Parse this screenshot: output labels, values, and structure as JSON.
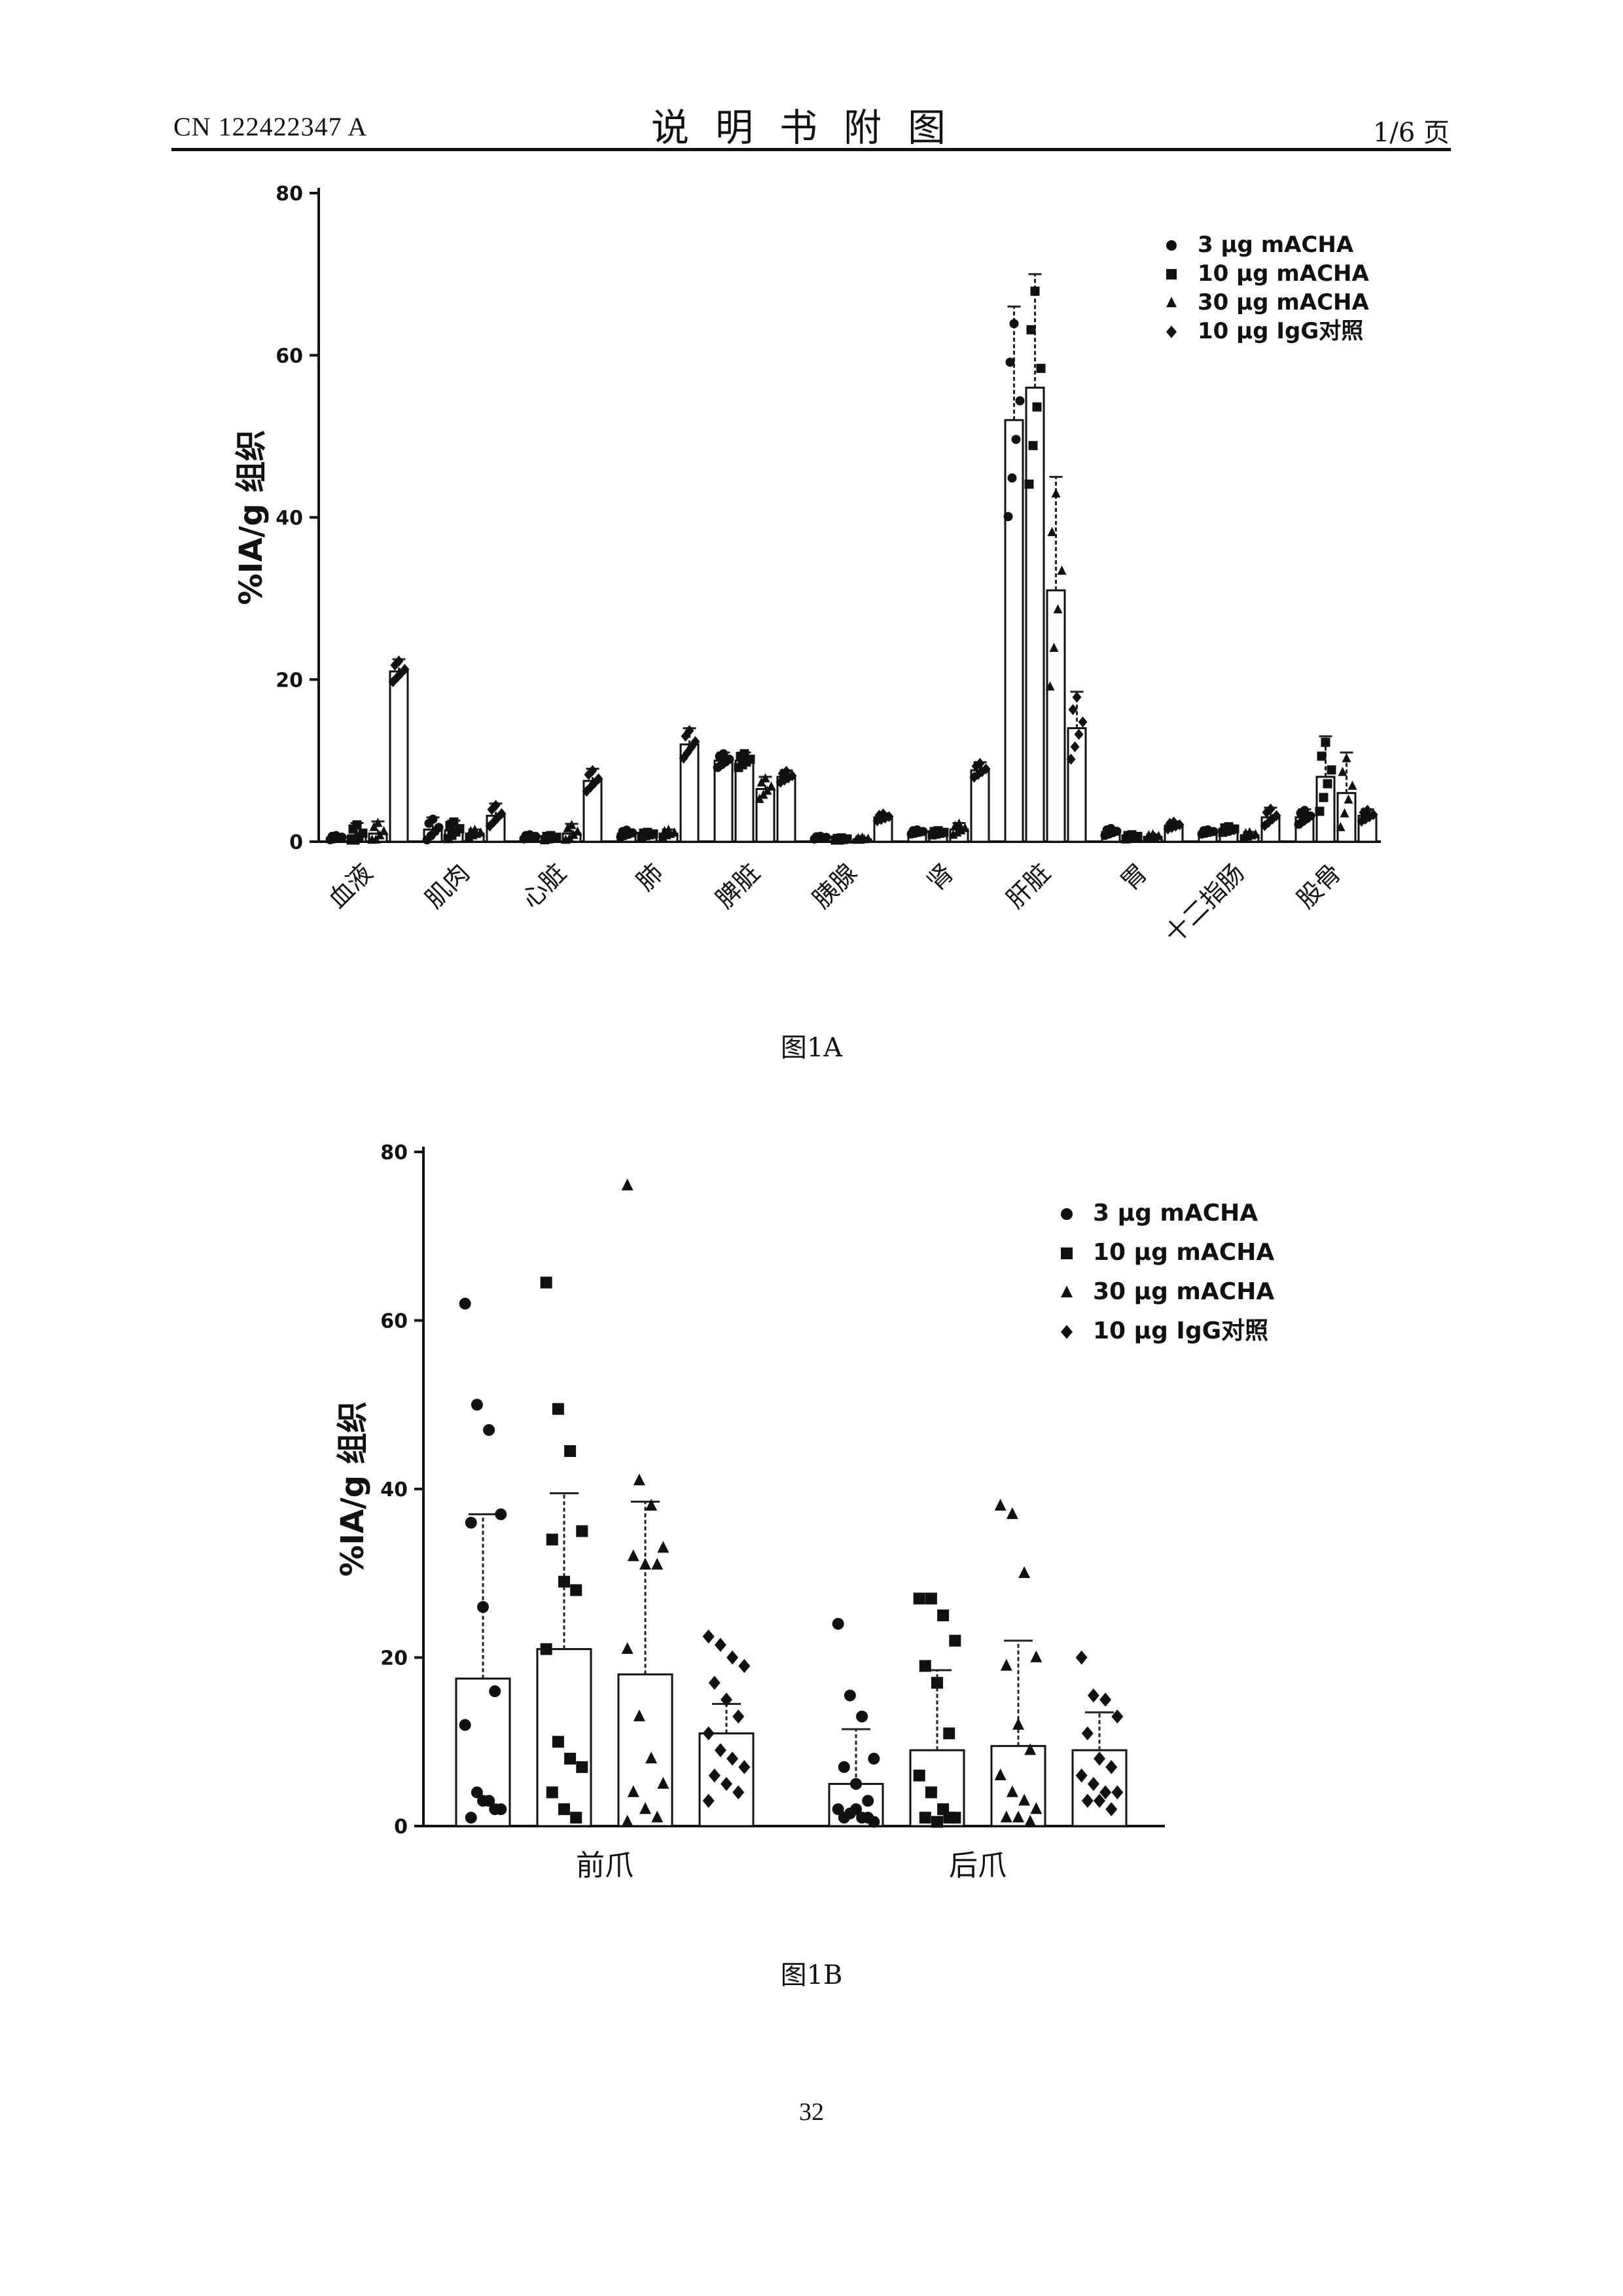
{
  "header": {
    "doc_number": "CN 122422347 A",
    "title": "说明书附图",
    "page_of": "1/6 页"
  },
  "figure_a_caption": "图1A",
  "figure_b_caption": "图1B",
  "page_number": "32",
  "colors": {
    "ink": "#111111",
    "bar_fill": "#ffffff",
    "error_bar": "#222222"
  },
  "chart_data": [
    {
      "id": "fig1a",
      "type": "bar",
      "ylabel": "%IA/g 组织",
      "ylim": [
        0,
        80
      ],
      "yticks": [
        "0",
        "20",
        "40",
        "60",
        "80"
      ],
      "categories": [
        "血液",
        "肌肉",
        "心脏",
        "肺",
        "脾脏",
        "胰腺",
        "肾",
        "肝脏",
        "胃",
        "十二指肠",
        "股骨"
      ],
      "legend_position": "top-right",
      "series": [
        {
          "name": "3 μg mACHA",
          "marker": "circle",
          "values": [
            0.5,
            1.5,
            0.6,
            1.0,
            10.0,
            0.5,
            1.2,
            52.0,
            1.2,
            1.2,
            3.0
          ],
          "errors": [
            0.3,
            1.5,
            0.3,
            0.5,
            1.0,
            0.2,
            0.3,
            14.0,
            0.5,
            0.3,
            1.0
          ]
        },
        {
          "name": "10 μg mACHA",
          "marker": "square",
          "values": [
            0.8,
            1.4,
            0.5,
            0.9,
            10.0,
            0.3,
            1.1,
            56.0,
            0.6,
            1.5,
            8.0
          ],
          "errors": [
            1.5,
            1.2,
            0.3,
            0.3,
            1.0,
            0.2,
            0.3,
            14.0,
            0.3,
            0.4,
            5.0
          ]
        },
        {
          "name": "30 μg mACHA",
          "marker": "triangle",
          "values": [
            1.0,
            1.0,
            1.0,
            1.0,
            6.5,
            0.3,
            1.5,
            31.0,
            0.6,
            0.8,
            6.0
          ],
          "errors": [
            1.5,
            0.5,
            1.2,
            0.5,
            1.5,
            0.2,
            0.8,
            14.0,
            0.3,
            0.4,
            5.0
          ]
        },
        {
          "name": "10 μg IgG对照",
          "marker": "diamond",
          "values": [
            21.0,
            3.2,
            7.5,
            12.0,
            8.0,
            3.0,
            8.8,
            14.0,
            2.0,
            3.0,
            3.2
          ],
          "errors": [
            1.5,
            1.5,
            1.5,
            2.0,
            0.8,
            0.5,
            1.0,
            4.5,
            0.5,
            1.2,
            0.8
          ]
        }
      ]
    },
    {
      "id": "fig1b",
      "type": "bar",
      "ylabel": "%IA/g 组织",
      "ylim": [
        0,
        80
      ],
      "yticks": [
        "0",
        "20",
        "40",
        "60",
        "80"
      ],
      "categories": [
        "前爪",
        "后爪"
      ],
      "legend_position": "top-right",
      "series": [
        {
          "name": "3 μg mACHA",
          "marker": "circle",
          "values": [
            17.5,
            5.0
          ],
          "errors": [
            19.5,
            6.5
          ],
          "points": [
            [
              62,
              50,
              47,
              37,
              36,
              26,
              16,
              12,
              4,
              3,
              2,
              1,
              3,
              2
            ],
            [
              24,
              15.5,
              13,
              8,
              7,
              5,
              3,
              2,
              1.5,
              1,
              0.5,
              1,
              2,
              1
            ]
          ]
        },
        {
          "name": "10 μg mACHA",
          "marker": "square",
          "values": [
            21.0,
            9.0
          ],
          "errors": [
            18.5,
            9.5
          ],
          "points": [
            [
              64.5,
              49.5,
              44.5,
              35,
              34,
              29,
              28,
              21,
              10,
              8,
              7,
              4,
              2,
              1
            ],
            [
              27,
              27,
              25,
              22,
              19,
              17,
              11,
              6,
              4,
              2,
              1,
              1,
              0.5,
              1
            ]
          ]
        },
        {
          "name": "30 μg mACHA",
          "marker": "triangle",
          "values": [
            18.0,
            9.5
          ],
          "errors": [
            20.5,
            12.5
          ],
          "points": [
            [
              76,
              41,
              38,
              33,
              32,
              31,
              31,
              21,
              13,
              8,
              5,
              4,
              2,
              1,
              0.5
            ],
            [
              38,
              37,
              30,
              20,
              19,
              12,
              9,
              6,
              4,
              3,
              2,
              1,
              1,
              0.5
            ]
          ]
        },
        {
          "name": "10 μg IgG对照",
          "marker": "diamond",
          "values": [
            11.0,
            9.0
          ],
          "errors": [
            3.5,
            4.5
          ],
          "points": [
            [
              22.5,
              21.5,
              20,
              19,
              17,
              15,
              13,
              11,
              9,
              8,
              7,
              6,
              5,
              4,
              3
            ],
            [
              20,
              15.5,
              15,
              13,
              11,
              8,
              7,
              6,
              5,
              4,
              4,
              3,
              3,
              2
            ]
          ]
        }
      ]
    }
  ]
}
